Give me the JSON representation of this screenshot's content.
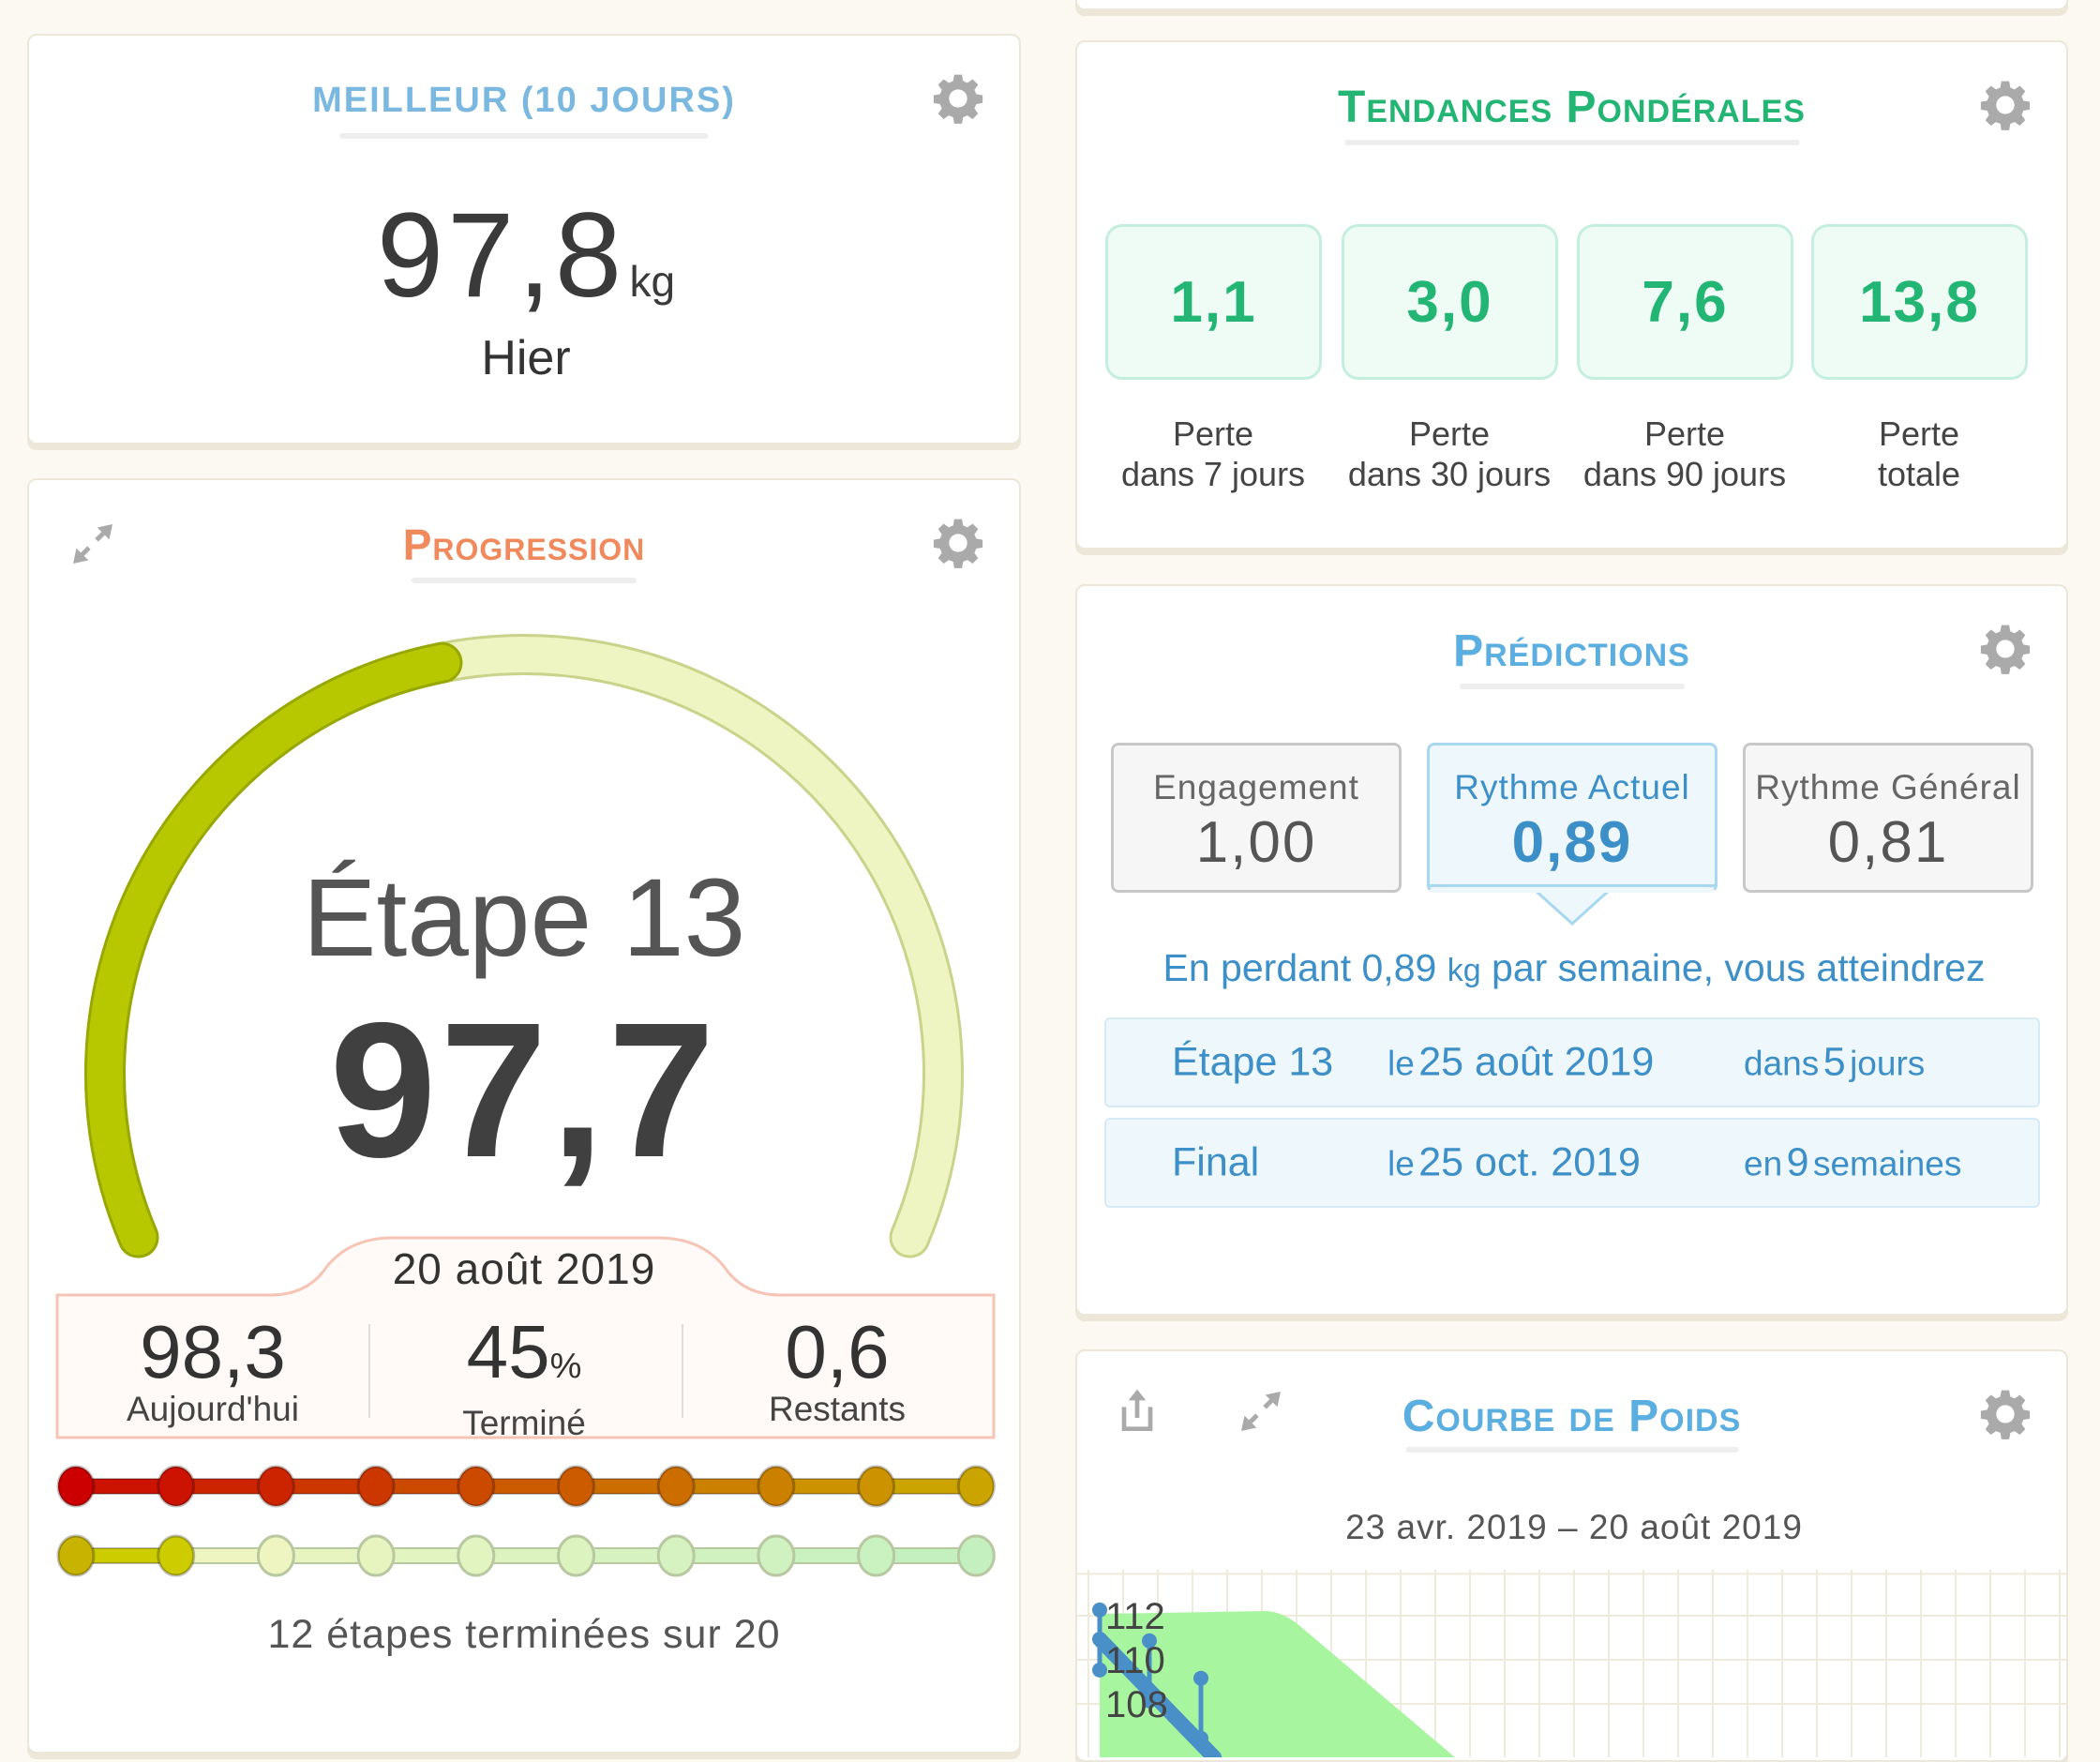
{
  "best": {
    "title": "MEILLEUR (10 JOURS)",
    "value": "97,8",
    "unit": "kg",
    "label": "Hier"
  },
  "progress": {
    "title": "Progression",
    "stage": "Étape 13",
    "value": "97,7",
    "date": "20 août 2019",
    "fraction": 0.45,
    "stats": [
      {
        "value": "98,3",
        "suffix": "",
        "label": "Aujourd'hui"
      },
      {
        "value": "45",
        "suffix": "%",
        "label": "Terminé"
      },
      {
        "value": "0,6",
        "suffix": "",
        "label": "Restants"
      }
    ],
    "steps_done": 12,
    "steps_total": 20,
    "summary": "12 étapes terminées sur 20",
    "colors": {
      "gauge_fill": "#b8c800",
      "gauge_track": "#eef4c2",
      "accent": "#f08a5d"
    }
  },
  "trends": {
    "title": "Tendances Pondérales",
    "color": "#22b573",
    "items": [
      {
        "value": "1,1",
        "l1": "Perte",
        "l2": "dans 7 jours"
      },
      {
        "value": "3,0",
        "l1": "Perte",
        "l2": "dans 30 jours"
      },
      {
        "value": "7,6",
        "l1": "Perte",
        "l2": "dans 90 jours"
      },
      {
        "value": "13,8",
        "l1": "Perte",
        "l2": "totale"
      }
    ]
  },
  "predictions": {
    "title": "Prédictions",
    "color": "#3d8fc7",
    "boxes": [
      {
        "label": "Engagement",
        "value": "1,00",
        "selected": false
      },
      {
        "label": "Rythme Actuel",
        "value": "0,89",
        "selected": true
      },
      {
        "label": "Rythme Général",
        "value": "0,81",
        "selected": false
      }
    ],
    "sentence": {
      "a": "En perdant 0,89 ",
      "unit": "kg",
      "b": " par semaine, vous atteindrez"
    },
    "rows": [
      {
        "name": "Étape 13",
        "le": "le",
        "date": "25 août 2019",
        "pre": "dans",
        "n": "5",
        "post": "jours"
      },
      {
        "name": "Final",
        "le": "le",
        "date": "25 oct. 2019",
        "pre": "en",
        "n": "9",
        "post": "semaines"
      }
    ]
  },
  "chart_card": {
    "title": "Courbe de Poids",
    "range": "23 avr. 2019 – 20 août 2019"
  },
  "chart_data": {
    "type": "line",
    "title": "Courbe de Poids",
    "subtitle": "23 avr. 2019 – 20 août 2019",
    "yticks": [
      112,
      110,
      108
    ],
    "series": [
      {
        "values": [
          110.9,
          109.5,
          107.8
        ]
      }
    ],
    "grid": true,
    "colors": {
      "line": "#4a90c8",
      "area": "#a8f5a0"
    }
  }
}
